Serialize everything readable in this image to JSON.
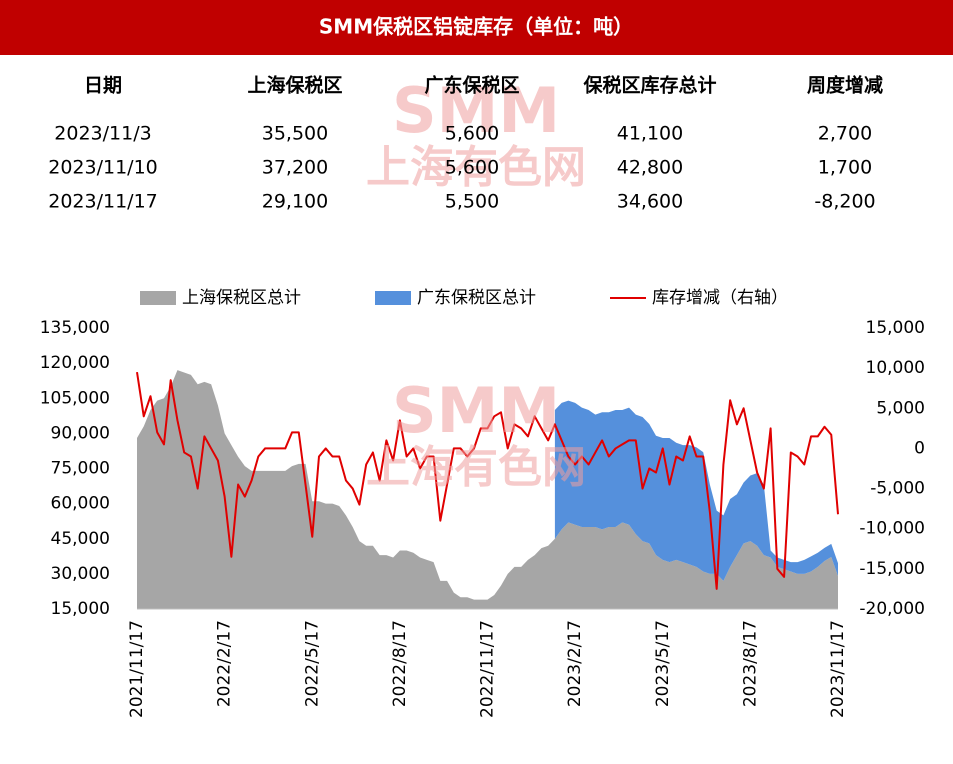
{
  "header": {
    "title": "SMM保税区铝锭库存（单位：吨）"
  },
  "watermark": {
    "logo": "SMM",
    "name": "上海有色网"
  },
  "table": {
    "header": [
      "日期",
      "上海保税区",
      "广东保税区",
      "保税区库存总计",
      "周度增减"
    ],
    "rows": [
      [
        "2023/11/3",
        "35,500",
        "5,600",
        "41,100",
        "2,700"
      ],
      [
        "2023/11/10",
        "37,200",
        "5,600",
        "42,800",
        "1,700"
      ],
      [
        "2023/11/17",
        "29,100",
        "5,500",
        "34,600",
        "-8,200"
      ]
    ]
  },
  "chart_data": {
    "type": "area",
    "stacked": true,
    "categories": [
      "2021/11/17",
      null,
      null,
      null,
      null,
      null,
      null,
      null,
      null,
      null,
      null,
      null,
      null,
      "2022/2/17",
      null,
      null,
      null,
      null,
      null,
      null,
      null,
      null,
      null,
      null,
      null,
      null,
      "2022/5/17",
      null,
      null,
      null,
      null,
      null,
      null,
      null,
      null,
      null,
      null,
      null,
      null,
      "2022/8/17",
      null,
      null,
      null,
      null,
      null,
      null,
      null,
      null,
      null,
      null,
      null,
      null,
      "2022/11/17",
      null,
      null,
      null,
      null,
      null,
      null,
      null,
      null,
      null,
      null,
      null,
      null,
      "2023/2/17",
      null,
      null,
      null,
      null,
      null,
      null,
      null,
      null,
      null,
      null,
      null,
      null,
      "2023/5/17",
      null,
      null,
      null,
      null,
      null,
      null,
      null,
      null,
      null,
      null,
      null,
      null,
      "2023/8/17",
      null,
      null,
      null,
      null,
      null,
      null,
      null,
      null,
      null,
      null,
      null,
      null,
      "2023/11/17"
    ],
    "ylim": [
      15000,
      135000
    ],
    "yticks": [
      {
        "value": 15000,
        "label": "15,000"
      },
      {
        "value": 30000,
        "label": "30,000"
      },
      {
        "value": 45000,
        "label": "45,000"
      },
      {
        "value": 60000,
        "label": "60,000"
      },
      {
        "value": 75000,
        "label": "75,000"
      },
      {
        "value": 90000,
        "label": "90,000"
      },
      {
        "value": 105000,
        "label": "105,000"
      },
      {
        "value": 120000,
        "label": "120,000"
      },
      {
        "value": 135000,
        "label": "135,000"
      }
    ],
    "y2lim": [
      -20000,
      15000
    ],
    "y2ticks": [
      {
        "value": -20000,
        "label": "-20,000"
      },
      {
        "value": -15000,
        "label": "-15,000"
      },
      {
        "value": -10000,
        "label": "-10,000"
      },
      {
        "value": -5000,
        "label": "-5,000"
      },
      0,
      {
        "value": 5000,
        "label": "5,000"
      },
      {
        "value": 10000,
        "label": "10,000"
      },
      {
        "value": 15000,
        "label": "15,000"
      }
    ],
    "legend": "top",
    "series": [
      {
        "name": "上海保税区总计",
        "type": "area",
        "color": "#a6a6a6",
        "values": [
          88000,
          93000,
          100000,
          104000,
          105000,
          110000,
          117000,
          116000,
          115000,
          111000,
          112000,
          111000,
          102000,
          90000,
          85000,
          80000,
          76000,
          74000,
          74000,
          74000,
          74000,
          74000,
          74000,
          76000,
          77000,
          77000,
          61000,
          61000,
          60000,
          60000,
          59000,
          55000,
          50000,
          44000,
          42000,
          42000,
          38000,
          38000,
          37000,
          40000,
          40000,
          39000,
          37000,
          36000,
          35000,
          27000,
          27000,
          22000,
          20000,
          20000,
          19000,
          19000,
          19000,
          21000,
          25000,
          30000,
          33000,
          33000,
          36000,
          38000,
          41000,
          42000,
          45000,
          49000,
          52000,
          51000,
          50000,
          50000,
          50000,
          49000,
          50000,
          50000,
          52000,
          51000,
          47000,
          44000,
          43000,
          38000,
          36000,
          35000,
          36000,
          35000,
          34000,
          33000,
          31000,
          30000,
          30000,
          27000,
          33000,
          38000,
          43000,
          44000,
          42000,
          38000,
          37000,
          33000,
          32000,
          31000,
          30000,
          30000,
          31000,
          33000,
          35500,
          37200,
          29100
        ]
      },
      {
        "name": "广东保税区总计",
        "type": "area",
        "color": "#5590dc",
        "values": [
          null,
          null,
          null,
          null,
          null,
          null,
          null,
          null,
          null,
          null,
          null,
          null,
          null,
          null,
          null,
          null,
          null,
          null,
          null,
          null,
          null,
          null,
          null,
          null,
          null,
          null,
          null,
          null,
          null,
          null,
          null,
          null,
          null,
          null,
          null,
          null,
          null,
          null,
          null,
          null,
          null,
          null,
          null,
          null,
          null,
          null,
          null,
          null,
          null,
          null,
          null,
          null,
          null,
          null,
          null,
          null,
          null,
          null,
          null,
          null,
          null,
          null,
          55000,
          54000,
          52000,
          52000,
          51000,
          50000,
          48000,
          50000,
          49000,
          50000,
          48000,
          50000,
          51000,
          53000,
          51000,
          51000,
          52000,
          53000,
          50000,
          50000,
          51000,
          51000,
          51000,
          38000,
          27000,
          28000,
          29000,
          26000,
          26000,
          28000,
          31000,
          30000,
          3000,
          4000,
          4000,
          4000,
          5000,
          6000,
          6500,
          6000,
          5600,
          5600,
          5500
        ]
      },
      {
        "name": "库存增减（右轴）",
        "type": "line",
        "axis": "y2",
        "color": "#e00000",
        "values": [
          9500,
          4000,
          6500,
          2000,
          500,
          8500,
          3500,
          -500,
          -1000,
          -5000,
          1500,
          0,
          -1500,
          -6000,
          -13500,
          -4500,
          -6000,
          -4000,
          -1000,
          0,
          0,
          0,
          0,
          2000,
          2000,
          -4500,
          -11000,
          -1000,
          0,
          -1000,
          -1000,
          -4000,
          -5000,
          -7000,
          -2000,
          -500,
          -4000,
          1000,
          -1500,
          3500,
          -1000,
          0,
          -2500,
          -1000,
          -1000,
          -9000,
          -4500,
          0,
          0,
          -1000,
          0,
          2500,
          2500,
          4000,
          4500,
          0,
          3000,
          2500,
          1500,
          4000,
          2500,
          1000,
          3000,
          1000,
          -1000,
          -2000,
          -1000,
          -2000,
          -500,
          1000,
          -1000,
          0,
          500,
          1000,
          1000,
          -5000,
          -2500,
          -3000,
          0,
          -4500,
          -1000,
          -1500,
          1500,
          -1000,
          -1000,
          -8000,
          -17500,
          -2000,
          6000,
          3000,
          5000,
          1000,
          -3000,
          -5000,
          2500,
          -15000,
          -16000,
          -500,
          -1000,
          -2000,
          1500,
          1500,
          2700,
          1700,
          -8200
        ]
      }
    ]
  }
}
